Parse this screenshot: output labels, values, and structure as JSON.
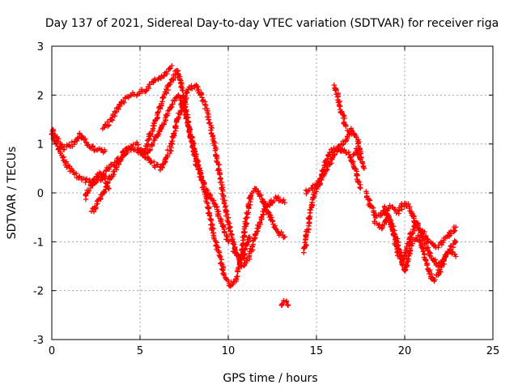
{
  "chart_data": {
    "type": "scatter",
    "title": "Day 137 of 2021, Sidereal Day-to-day VTEC variation (SDTVAR) for receiver riga",
    "xlabel": "GPS time / hours",
    "ylabel": "SDTVAR / TECUs",
    "xlim": [
      0,
      25
    ],
    "ylim": [
      -3,
      3
    ],
    "xticks": [
      0,
      5,
      10,
      15,
      20,
      25
    ],
    "yticks": [
      -3,
      -2,
      -1,
      0,
      1,
      2,
      3
    ],
    "grid": true,
    "marker": "plus",
    "color": "#ff0000",
    "tracks": [
      {
        "name": "track-1",
        "x": [
          0.0,
          0.3,
          0.7,
          1.2,
          1.6,
          2.0,
          2.4,
          2.8,
          3.0
        ],
        "y": [
          1.3,
          1.1,
          0.9,
          1.0,
          1.2,
          1.0,
          0.9,
          0.85,
          0.85
        ]
      },
      {
        "name": "track-2",
        "x": [
          0.0,
          0.4,
          0.8,
          1.2,
          1.6,
          2.0,
          2.4,
          2.8,
          3.2,
          3.6,
          4.0,
          4.4,
          4.8,
          5.2,
          5.6,
          6.0,
          6.4,
          6.8,
          7.2,
          7.6,
          8.0,
          8.4,
          8.8,
          9.2,
          9.5,
          9.8,
          10.1,
          10.4,
          10.7,
          11.0,
          11.3,
          11.6,
          12.0,
          12.4,
          12.8,
          13.2
        ],
        "y": [
          1.2,
          0.9,
          0.6,
          0.4,
          0.3,
          0.25,
          0.2,
          0.3,
          0.5,
          0.6,
          0.8,
          0.9,
          0.85,
          0.8,
          0.9,
          1.2,
          1.5,
          1.8,
          2.0,
          1.6,
          1.0,
          0.4,
          -0.2,
          -0.9,
          -1.3,
          -1.7,
          -1.9,
          -1.8,
          -1.4,
          -0.6,
          0.0,
          0.1,
          -0.2,
          -0.5,
          -0.8,
          -0.9
        ]
      },
      {
        "name": "track-3",
        "x": [
          1.9,
          2.3,
          2.7,
          3.0,
          3.2
        ],
        "y": [
          -0.1,
          0.2,
          0.4,
          0.3,
          0.1
        ]
      },
      {
        "name": "track-4",
        "x": [
          2.3,
          2.8,
          3.3,
          3.8,
          4.3,
          4.8,
          5.2,
          5.7,
          6.2,
          6.7,
          7.2,
          7.7,
          8.2,
          8.7,
          9.2,
          9.6,
          10.0,
          10.4,
          10.8,
          11.2,
          11.6,
          12.0,
          12.4,
          12.8,
          13.2
        ],
        "y": [
          -0.4,
          -0.1,
          0.3,
          0.6,
          0.9,
          1.0,
          0.8,
          0.6,
          0.5,
          0.9,
          1.6,
          2.1,
          2.2,
          1.8,
          1.0,
          0.2,
          -0.6,
          -1.2,
          -1.5,
          -1.3,
          -0.8,
          -0.4,
          -0.2,
          -0.1,
          -0.2
        ]
      },
      {
        "name": "track-5",
        "x": [
          2.9,
          3.3,
          3.7,
          4.1,
          4.5,
          4.9,
          5.3,
          5.7,
          6.1,
          6.5,
          6.8
        ],
        "y": [
          1.3,
          1.45,
          1.7,
          1.9,
          2.0,
          2.05,
          2.1,
          2.25,
          2.35,
          2.45,
          2.6
        ]
      },
      {
        "name": "track-6",
        "x": [
          5.2,
          5.6,
          6.0,
          6.4,
          6.8,
          7.1,
          7.4,
          7.8,
          8.2,
          8.6,
          9.0,
          9.3,
          9.6,
          9.8,
          10.0
        ],
        "y": [
          0.8,
          1.2,
          1.6,
          2.0,
          2.3,
          2.5,
          2.1,
          1.3,
          0.6,
          0.2,
          -0.1,
          -0.3,
          -0.6,
          -0.8,
          -1.0
        ]
      },
      {
        "name": "track-7",
        "x": [
          10.3,
          10.6,
          10.8,
          11.0,
          11.2
        ],
        "y": [
          -1.2,
          -1.3,
          -1.35,
          -1.1,
          -0.9
        ]
      },
      {
        "name": "track-8",
        "x": [
          13.0,
          13.2,
          13.4
        ],
        "y": [
          -2.3,
          -2.2,
          -2.3
        ]
      },
      {
        "name": "track-9",
        "x": [
          14.3,
          14.6,
          14.9,
          15.2,
          15.5,
          15.8,
          16.1,
          16.4,
          16.7,
          17.0,
          17.3,
          17.5
        ],
        "y": [
          -1.2,
          -0.5,
          0.0,
          0.3,
          0.6,
          0.85,
          0.9,
          1.0,
          1.1,
          1.3,
          1.1,
          0.8
        ]
      },
      {
        "name": "track-10",
        "x": [
          14.4,
          14.8,
          15.2,
          15.6,
          16.0,
          16.4,
          16.8,
          17.2,
          17.5
        ],
        "y": [
          0.0,
          0.1,
          0.2,
          0.5,
          0.8,
          0.9,
          0.8,
          0.5,
          0.1
        ]
      },
      {
        "name": "track-11",
        "x": [
          16.0,
          16.2,
          16.4,
          16.6,
          16.8,
          17.0
        ],
        "y": [
          2.2,
          2.0,
          1.7,
          1.4,
          1.3,
          1.2
        ]
      },
      {
        "name": "track-12",
        "x": [
          17.1,
          17.3,
          17.5,
          17.7
        ],
        "y": [
          0.8,
          0.9,
          0.7,
          0.5
        ]
      },
      {
        "name": "track-13",
        "x": [
          17.8,
          18.1,
          18.4,
          18.8,
          19.2,
          19.6,
          20.0,
          20.3,
          20.6,
          21.0,
          21.4,
          21.8,
          22.2,
          22.6,
          22.9
        ],
        "y": [
          0.0,
          -0.3,
          -0.5,
          -0.4,
          -0.3,
          -0.4,
          -0.2,
          -0.3,
          -0.6,
          -0.8,
          -1.0,
          -1.1,
          -1.0,
          -0.8,
          -0.7
        ]
      },
      {
        "name": "track-14",
        "x": [
          18.3,
          18.7,
          19.1,
          19.5,
          19.9,
          20.3,
          20.7,
          21.1,
          21.5,
          21.9,
          22.3,
          22.6,
          22.9
        ],
        "y": [
          -0.6,
          -0.7,
          -0.5,
          -0.9,
          -1.4,
          -0.9,
          -0.6,
          -1.0,
          -1.3,
          -1.5,
          -1.3,
          -1.2,
          -1.3
        ]
      },
      {
        "name": "track-15",
        "x": [
          18.8,
          19.2,
          19.6,
          20.0,
          20.4,
          20.8,
          21.2,
          21.6,
          22.0,
          22.4,
          22.9
        ],
        "y": [
          -0.3,
          -0.6,
          -1.2,
          -1.6,
          -1.0,
          -0.9,
          -1.4,
          -1.8,
          -1.6,
          -1.2,
          -1.0
        ]
      }
    ]
  }
}
